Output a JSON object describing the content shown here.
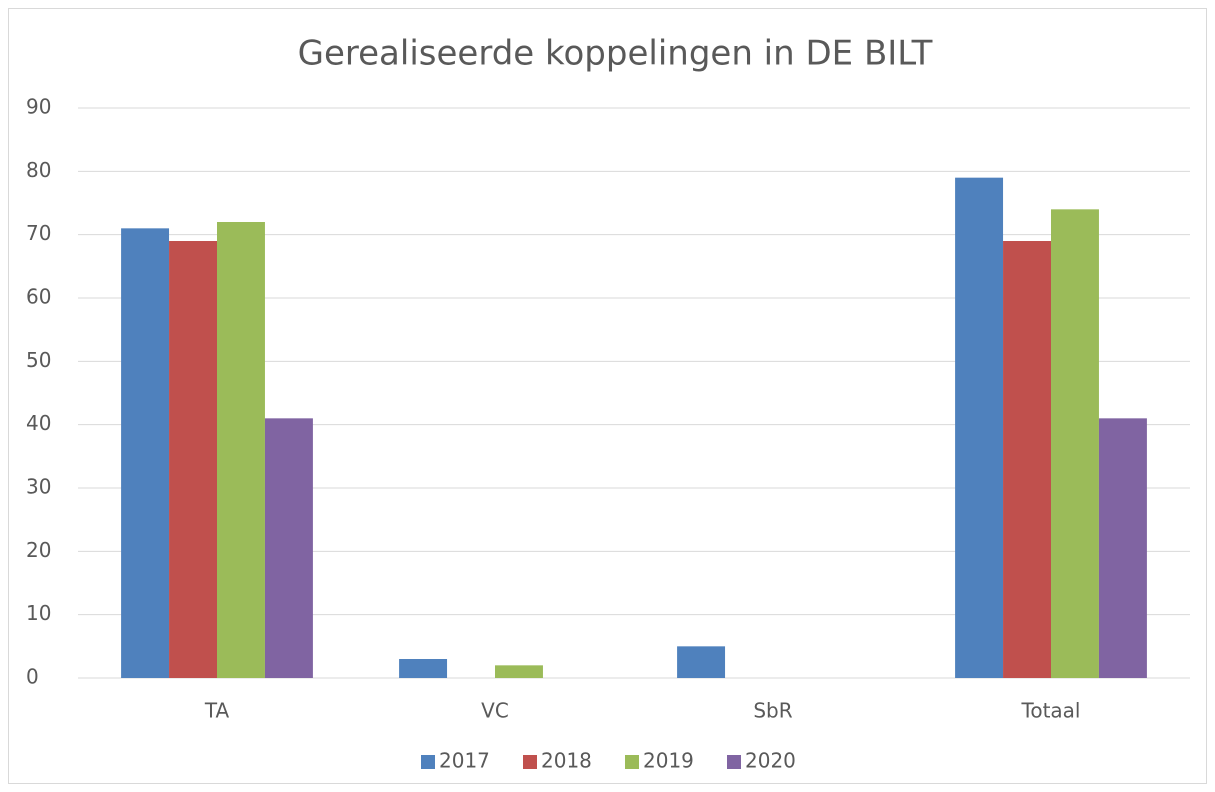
{
  "chart_data": {
    "type": "bar",
    "title": "Gerealiseerde koppelingen in DE BILT",
    "categories": [
      "TA",
      "VC",
      "SbR",
      "Totaal"
    ],
    "series": [
      {
        "name": "2017",
        "color": "#4f81bd",
        "values": [
          71,
          3,
          5,
          79
        ]
      },
      {
        "name": "2018",
        "color": "#c0504d",
        "values": [
          69,
          0,
          0,
          69
        ]
      },
      {
        "name": "2019",
        "color": "#9bbb59",
        "values": [
          72,
          2,
          0,
          74
        ]
      },
      {
        "name": "2020",
        "color": "#8064a2",
        "values": [
          41,
          0,
          0,
          41
        ]
      }
    ],
    "ylim": [
      0,
      90
    ],
    "yticks": [
      0,
      10,
      20,
      30,
      40,
      50,
      60,
      70,
      80,
      90
    ],
    "grid": true,
    "legend": "bottom"
  }
}
